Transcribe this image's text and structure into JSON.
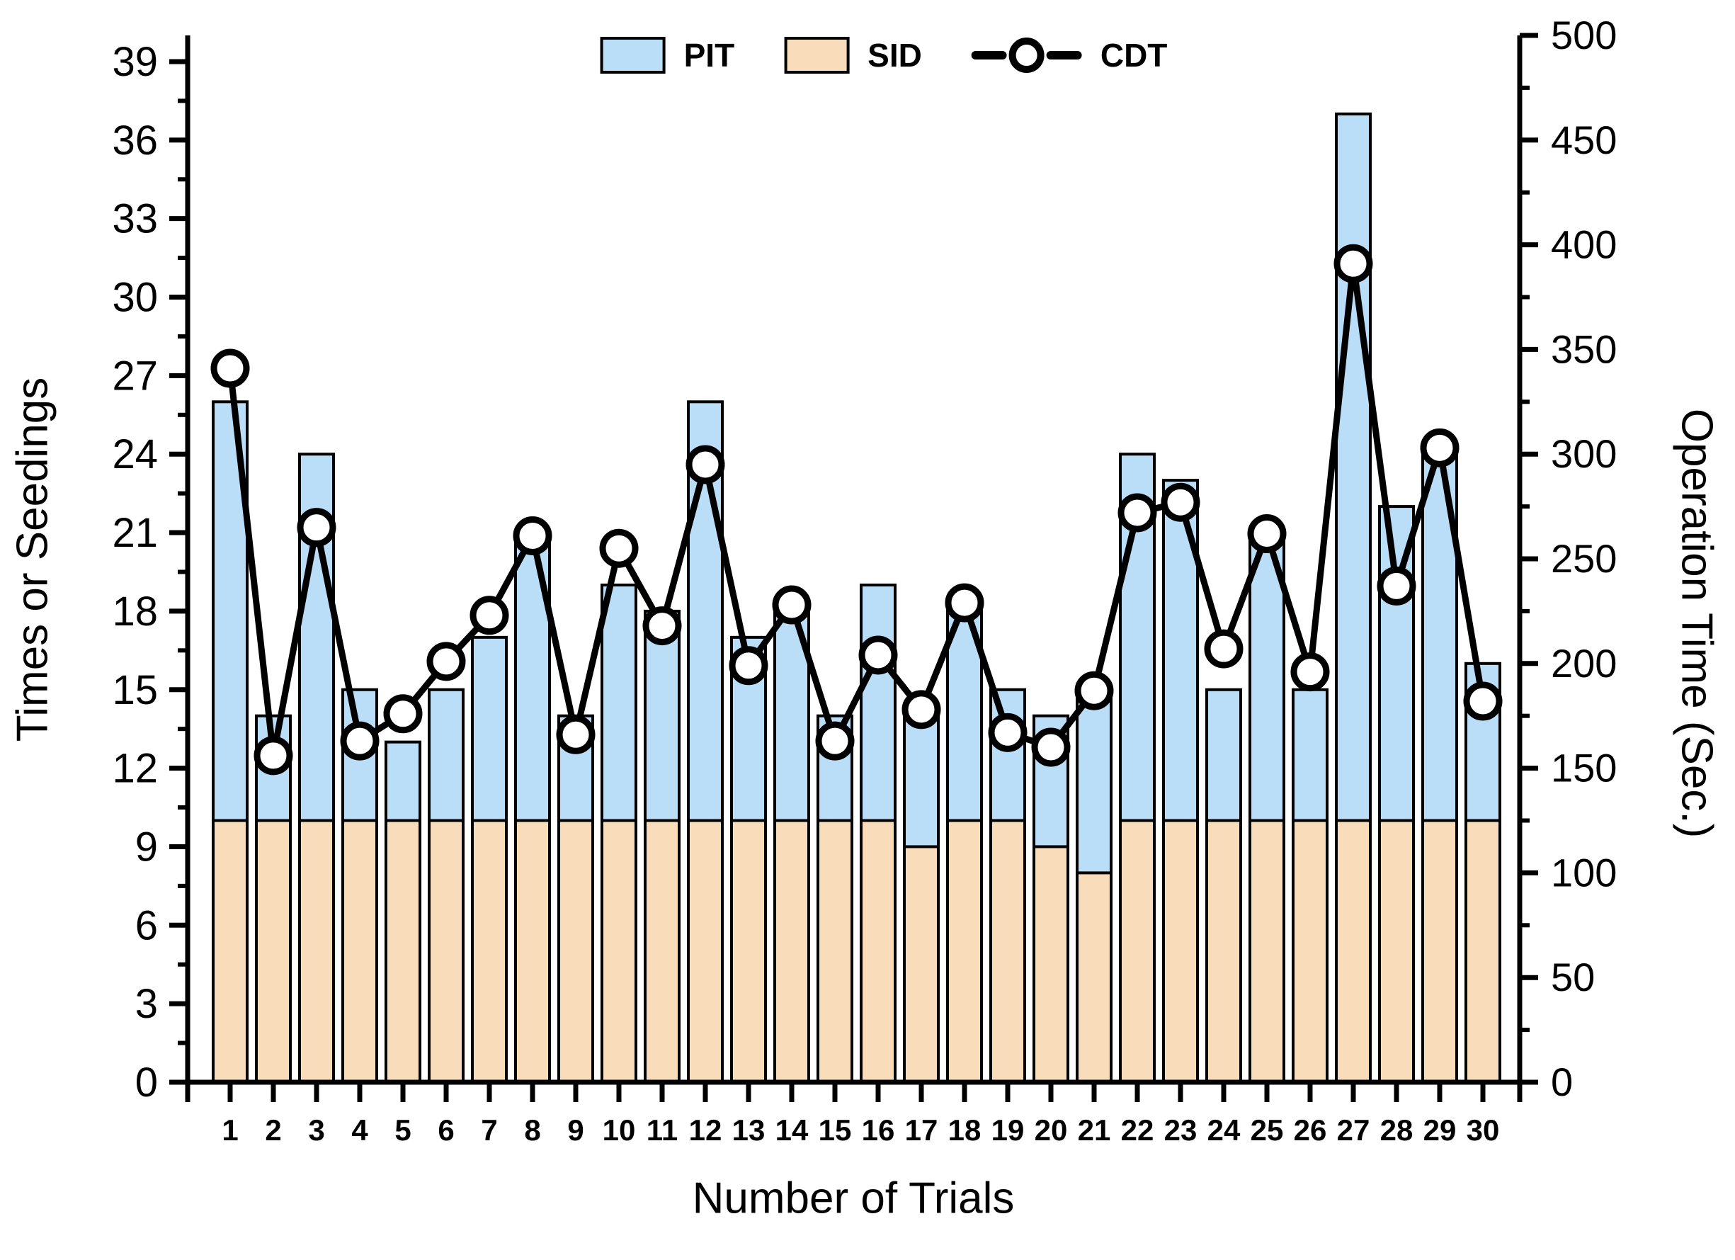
{
  "chart_data": {
    "type": "bar",
    "subtype": "stacked-bar-with-line-dual-axis",
    "title": "",
    "grid": false,
    "legend_position": "top-center",
    "categories": [
      1,
      2,
      3,
      4,
      5,
      6,
      7,
      8,
      9,
      10,
      11,
      12,
      13,
      14,
      15,
      16,
      17,
      18,
      19,
      20,
      21,
      22,
      23,
      24,
      25,
      26,
      27,
      28,
      29,
      30
    ],
    "series": [
      {
        "name": "PIT",
        "type": "bar",
        "axis": "left",
        "color": "#BADEF8",
        "values": [
          26,
          14,
          24,
          15,
          13,
          15,
          17,
          21,
          14,
          19,
          18,
          26,
          17,
          18,
          14,
          19,
          14,
          18,
          15,
          14,
          15,
          24,
          23,
          15,
          21,
          15,
          37,
          22,
          24,
          16
        ]
      },
      {
        "name": "SID",
        "type": "bar",
        "axis": "left",
        "color": "#F9DDBB",
        "values": [
          10,
          10,
          10,
          10,
          10,
          10,
          10,
          10,
          10,
          10,
          10,
          10,
          10,
          10,
          10,
          10,
          9,
          10,
          10,
          9,
          8,
          10,
          10,
          10,
          10,
          10,
          10,
          10,
          10,
          10
        ]
      },
      {
        "name": "CDT",
        "type": "line",
        "axis": "right",
        "color": "#000000",
        "marker": "open-circle",
        "values": [
          341,
          156,
          265,
          163,
          176,
          201,
          223,
          261,
          166,
          255,
          218,
          295,
          199,
          228,
          163,
          204,
          178,
          229,
          167,
          160,
          187,
          272,
          277,
          207,
          262,
          196,
          391,
          237,
          303,
          182
        ]
      }
    ],
    "x_axis": {
      "label": "Number of Trials",
      "ticks": [
        1,
        2,
        3,
        4,
        5,
        6,
        7,
        8,
        9,
        10,
        11,
        12,
        13,
        14,
        15,
        16,
        17,
        18,
        19,
        20,
        21,
        22,
        23,
        24,
        25,
        26,
        27,
        28,
        29,
        30
      ]
    },
    "left_axis": {
      "label": "Times or Seedings",
      "min": 0,
      "max": 40,
      "major_tick_step": 3,
      "minor_tick_step": 1.5,
      "tick_labels": [
        0,
        3,
        6,
        9,
        12,
        15,
        18,
        21,
        24,
        27,
        30,
        33,
        36,
        39
      ]
    },
    "right_axis": {
      "label": "Operation Time (Sec.)",
      "min": 0,
      "max": 500,
      "major_tick_step": 50,
      "minor_tick_step": 25,
      "tick_labels": [
        0,
        50,
        100,
        150,
        200,
        250,
        300,
        350,
        400,
        450,
        500
      ]
    }
  }
}
